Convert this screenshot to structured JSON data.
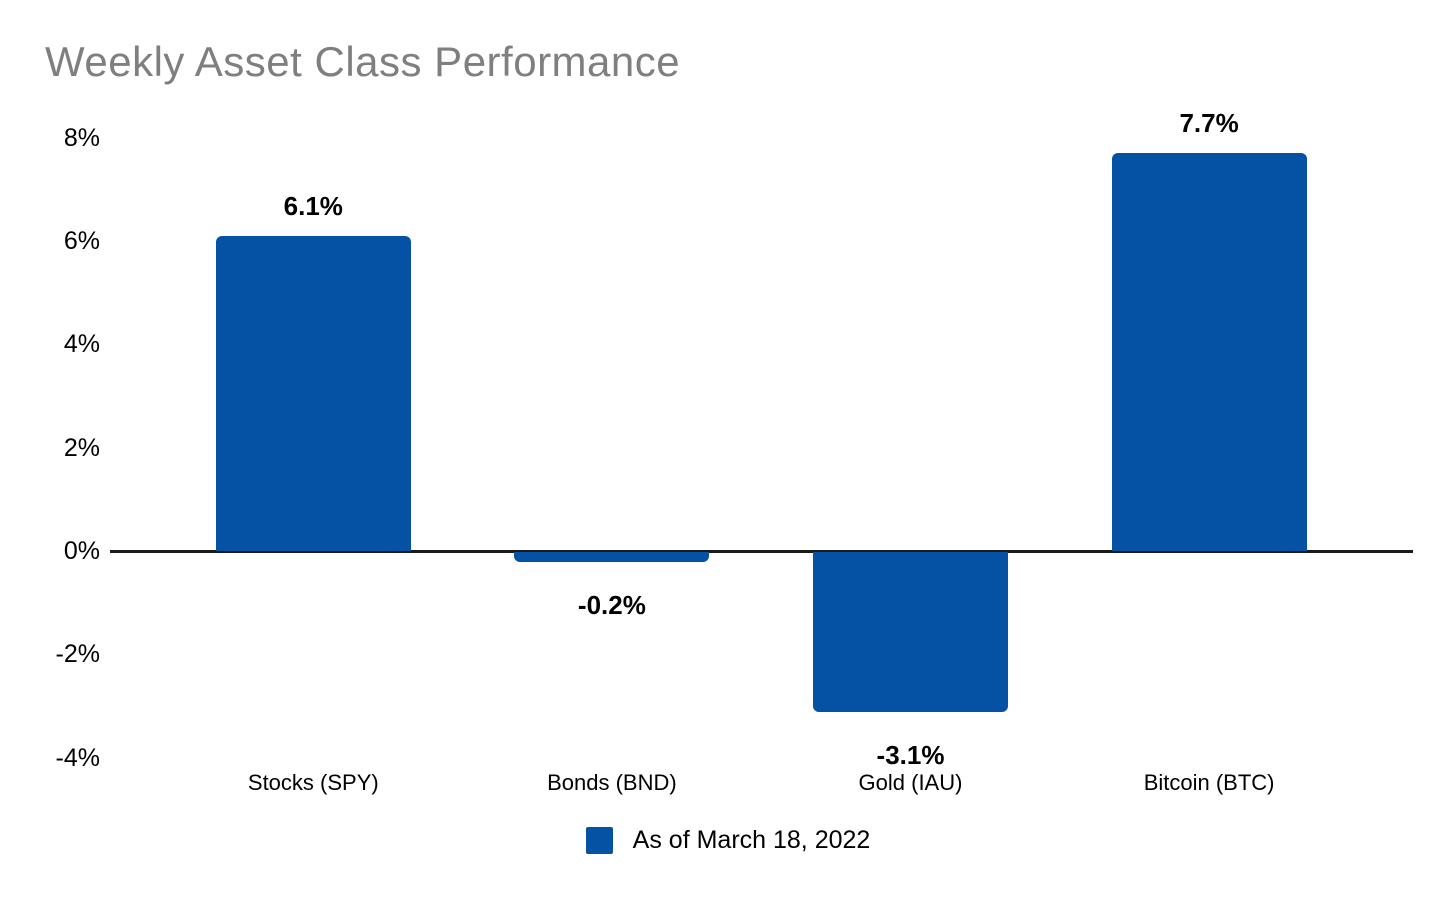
{
  "title": "Weekly Asset Class Performance",
  "legend": {
    "label": "As of March 18, 2022",
    "swatch_icon": "legend-swatch-square",
    "swatch_color": "#0552A5"
  },
  "colors": {
    "bar": "#0552A5",
    "title_text": "#7f7f7f",
    "axis_line": "#1a1a1a",
    "label_text": "#000000",
    "background": "#ffffff"
  },
  "chart_data": {
    "type": "bar",
    "title": "Weekly Asset Class Performance",
    "categories": [
      "Stocks (SPY)",
      "Bonds (BND)",
      "Gold (IAU)",
      "Bitcoin (BTC)"
    ],
    "series": [
      {
        "name": "As of March 18, 2022",
        "values": [
          6.1,
          -0.2,
          -3.1,
          7.7
        ],
        "data_labels": [
          "6.1%",
          "-0.2%",
          "-3.1%",
          "7.7%"
        ],
        "color": "#0552A5"
      }
    ],
    "xlabel": "",
    "ylabel": "",
    "ylim": [
      -4,
      8
    ],
    "ytick_values": [
      8,
      6,
      4,
      2,
      0,
      -2,
      -4
    ],
    "ytick_labels": [
      "8%",
      "6%",
      "4%",
      "2%",
      "0%",
      "-2%",
      "-4%"
    ],
    "grid": false,
    "legend_position": "bottom-center",
    "data_labels_visible": true
  }
}
